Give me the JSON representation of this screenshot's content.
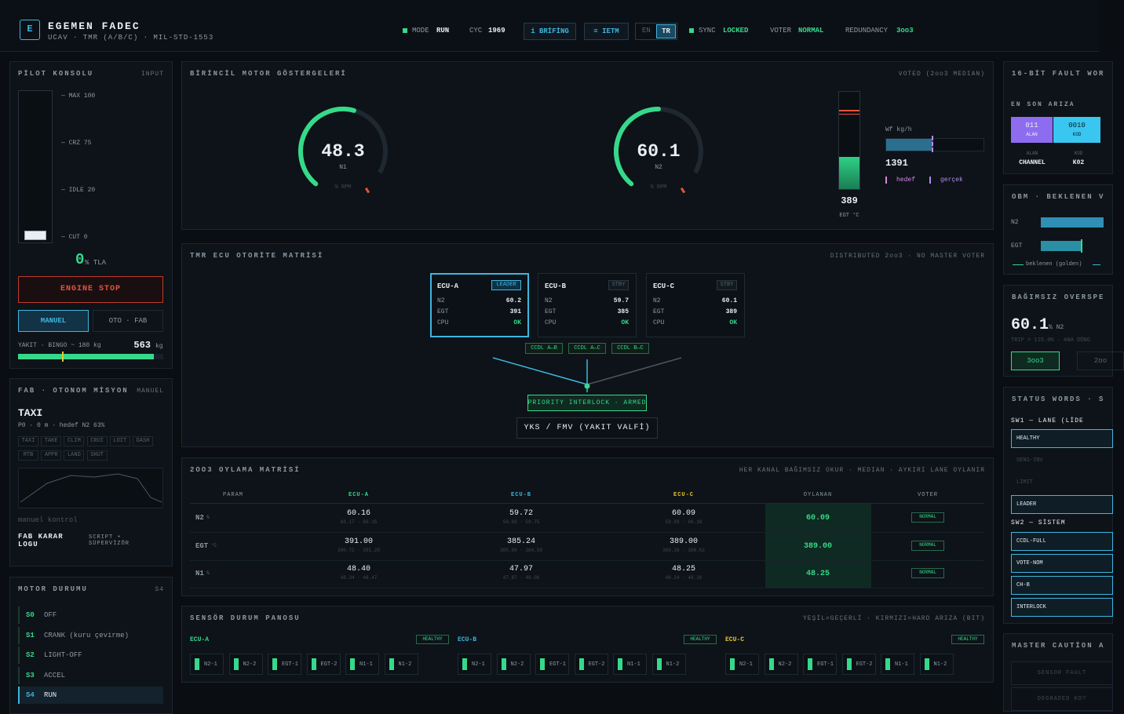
{
  "header": {
    "logo": "E",
    "title": "EGEMEN FADEC",
    "subtitle": "UCAV · TMR (A/B/C) · MIL-STD-1553",
    "mode_label": "MODE",
    "mode": "RUN",
    "cyc_label": "CYC",
    "cyc": "1969",
    "briefing": "i BRİFİNG",
    "ietm": "≡ IETM",
    "lang_en": "EN",
    "lang_tr": "TR",
    "sync_label": "SYNC",
    "sync": "LOCKED",
    "voter_label": "VOTER",
    "voter": "NORMAL",
    "redundancy_label": "REDUNDANCY",
    "redundancy": "3oo3"
  },
  "pilot": {
    "title": "PİLOT KONSOLU",
    "tag": "INPUT",
    "scale": [
      "— MAX 100",
      "— CRZ 75",
      "— IDLE 20",
      "— CUT 0"
    ],
    "tla_value": "0",
    "tla_unit": "% TLA",
    "engine_stop": "ENGINE STOP",
    "mode_manual": "MANUEL",
    "mode_auto": "OTO · FAB",
    "fuel_label": "YAKIT · BINGO ~ 180 kg",
    "fuel_value": "563",
    "fuel_unit": "kg"
  },
  "mission": {
    "title": "FAB · OTONOM MİSYON",
    "tag": "MANUEL",
    "phase": "TAXI",
    "info": "P0 · 0 m · hedef N2 63%",
    "phases": [
      "TAXI",
      "TAKE",
      "CLIM",
      "CRUI",
      "LOIT",
      "DASH",
      "RTB",
      "APPR",
      "LAND",
      "SHUT"
    ],
    "status": "manuel kontrol",
    "log_title": "FAB KARAR LOGU",
    "log_tag": "SCRIPT • SÜPERVİZÖR"
  },
  "motor_state": {
    "title": "MOTOR DURUMU",
    "tag": "S4",
    "states": [
      {
        "code": "S0",
        "name": "OFF"
      },
      {
        "code": "S1",
        "name": "CRANK (kuru çevirme)"
      },
      {
        "code": "S2",
        "name": "LIGHT-OFF"
      },
      {
        "code": "S3",
        "name": "ACCEL"
      },
      {
        "code": "S4",
        "name": "RUN"
      }
    ]
  },
  "primary": {
    "title": "BİRİNCİL MOTOR GÖSTERGELERİ",
    "tag": "VOTED (2oo3 MEDIAN)",
    "gauges": [
      {
        "value": "48.3",
        "name": "N1",
        "unit": "% RPM"
      },
      {
        "value": "60.1",
        "name": "N2",
        "unit": "% RPM"
      }
    ],
    "egt": {
      "value": "389",
      "label": "EGT °C"
    },
    "wf": {
      "label": "Wf kg/h",
      "value": "1391",
      "target": "hedef",
      "actual": "gerçek"
    }
  },
  "tmr": {
    "title": "TMR ECU OTORİTE MATRİSİ",
    "tag": "DISTRIBUTED 2oo3 · NO MASTER VOTER",
    "ecus": [
      {
        "name": "ECU-A",
        "role": "LEADER",
        "rows": [
          [
            "N2",
            "60.2"
          ],
          [
            "EGT",
            "391"
          ],
          [
            "CPU",
            "OK"
          ]
        ]
      },
      {
        "name": "ECU-B",
        "role": "STBY",
        "rows": [
          [
            "N2",
            "59.7"
          ],
          [
            "EGT",
            "385"
          ],
          [
            "CPU",
            "OK"
          ]
        ]
      },
      {
        "name": "ECU-C",
        "role": "STBY",
        "rows": [
          [
            "N2",
            "60.1"
          ],
          [
            "EGT",
            "389"
          ],
          [
            "CPU",
            "OK"
          ]
        ]
      }
    ],
    "links": [
      "CCDL A↔B",
      "CCDL A↔C",
      "CCDL B↔C"
    ],
    "interlock": "PRIORITY INTERLOCK · ARMED",
    "valve": "YKS / FMV (YAKIT VALFİ)"
  },
  "voting": {
    "title": "2OO3 OYLAMA MATRİSİ",
    "tag": "HER KANAL BAĞIMSIZ OKUR · MEDIAN · AYKIRI LANE OYLANIR",
    "headers": [
      "PARAM",
      "ECU-A",
      "ECU-B",
      "ECU-C",
      "OYLANAN",
      "VOTER"
    ],
    "rows": [
      {
        "param": "N2",
        "unit": "%",
        "cells": [
          {
            "value": "60.16",
            "range": "60.17 · 60.15"
          },
          {
            "value": "59.72",
            "range": "59.69 · 59.75"
          },
          {
            "value": "60.09",
            "range": "59.99 · 60.18"
          }
        ],
        "voted": "60.09",
        "voter": "NORMAL"
      },
      {
        "param": "EGT",
        "unit": "°C",
        "cells": [
          {
            "value": "391.00",
            "range": "390.72 · 391.28"
          },
          {
            "value": "385.24",
            "range": "385.90 · 384.59"
          },
          {
            "value": "389.00",
            "range": "389.39 · 388.62"
          }
        ],
        "voted": "389.00",
        "voter": "NORMAL"
      },
      {
        "param": "N1",
        "unit": "%",
        "cells": [
          {
            "value": "48.40",
            "range": "48.34 · 48.47"
          },
          {
            "value": "47.97",
            "range": "47.87 · 48.06"
          },
          {
            "value": "48.25",
            "range": "48.24 · 48.26"
          }
        ],
        "voted": "48.25",
        "voter": "NORMAL"
      }
    ]
  },
  "sensors": {
    "title": "SENSÖR DURUM PANOSU",
    "tag": "YEŞİL=GEÇERLİ · KIRMIZI=HARD ARIZA (BIT)",
    "groups": [
      {
        "name": "ECU-A",
        "status": "HEALTHY",
        "sensors": [
          "N2-1",
          "N2-2",
          "EGT-1",
          "EGT-2",
          "N1-1",
          "N1-2"
        ]
      },
      {
        "name": "ECU-B",
        "status": "HEALTHY",
        "sensors": [
          "N2-1",
          "N2-2",
          "EGT-1",
          "EGT-2",
          "N1-1",
          "N1-2"
        ]
      },
      {
        "name": "ECU-C",
        "status": "HEALTHY",
        "sensors": [
          "N2-1",
          "N2-2",
          "EGT-1",
          "EGT-2",
          "N1-1",
          "N1-2"
        ]
      }
    ]
  },
  "fault": {
    "title": "16-BİT FAULT WOR",
    "subtitle": "EN SON ARIZA",
    "bits": [
      {
        "value": "011",
        "label": "ALAN"
      },
      {
        "value": "0010",
        "label": "KOD"
      }
    ],
    "fields": [
      {
        "label": "ALAN",
        "value": "CHANNEL"
      },
      {
        "label": "KOD",
        "value": "K02"
      }
    ]
  },
  "obm": {
    "title": "OBM · BEKLENEN V",
    "rows": [
      "N2",
      "EGT"
    ],
    "legend": "beklenen (golden)"
  },
  "overspeed": {
    "title": "BAĞIMSIZ OVERSPE",
    "value": "60.1",
    "unit": "% N2",
    "trip": "TRIP > 115.0% · ANA DÖNG",
    "modes": [
      "3oo3",
      "2oo"
    ]
  },
  "status": {
    "title": "STATUS WORDS · S",
    "sw1": "SW1 — LANE (LİDE",
    "sw1_bits": [
      "HEALTHY",
      "SENS-INV",
      "LIMIT",
      "LEADER"
    ],
    "sw2": "SW2 — SİSTEM",
    "sw2_bits": [
      "CCDL-FULL",
      "VOTE-NOM",
      "CH-B",
      "INTERLOCK"
    ]
  },
  "caution": {
    "title": "MASTER CAUTİON A",
    "items": [
      "SENSOR FAULT",
      "DEGRADED KO?"
    ]
  }
}
